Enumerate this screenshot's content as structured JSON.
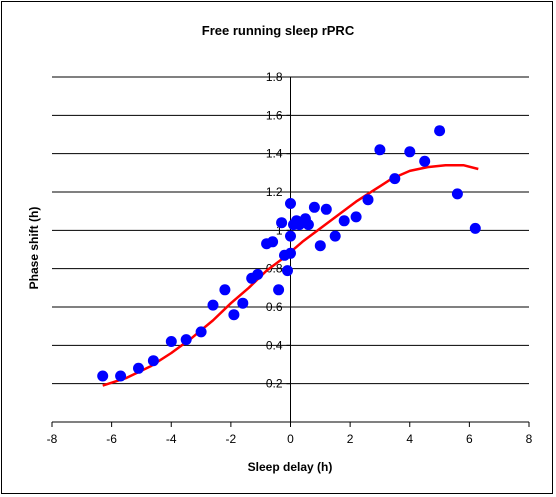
{
  "chart_data": {
    "type": "scatter",
    "title": "Free running sleep rPRC",
    "xlabel": "Sleep delay (h)",
    "ylabel": "Phase shift (h)",
    "xlim": [
      -8,
      8
    ],
    "ylim": [
      0,
      1.8
    ],
    "x_ticks": [
      "-8",
      "-6",
      "-4",
      "-2",
      "0",
      "2",
      "4",
      "6",
      "8"
    ],
    "y_ticks": [
      "0.2",
      "0.4",
      "0.6",
      "0.8",
      "1",
      "1.2",
      "1.4",
      "1.6",
      "1.8"
    ],
    "grid": "horizontal",
    "colors": {
      "points": "#0000ff",
      "fit": "#ff0000",
      "grid": "#000000"
    },
    "series": [
      {
        "kind": "points",
        "x": [
          -6.3,
          -5.7,
          -5.1,
          -4.6,
          -4.0,
          -3.5,
          -3.0,
          -2.6,
          -2.2,
          -1.9,
          -1.6,
          -1.3,
          -1.1,
          -0.8,
          -0.6,
          -0.4,
          -0.3,
          -0.2,
          -0.1,
          0.0,
          0.0,
          0.0,
          0.1,
          0.2,
          0.3,
          0.5,
          0.6,
          0.8,
          1.0,
          1.2,
          1.5,
          1.8,
          2.2,
          2.6,
          3.0,
          3.5,
          4.0,
          4.5,
          5.0,
          5.6,
          6.2
        ],
        "y": [
          0.24,
          0.24,
          0.28,
          0.32,
          0.42,
          0.43,
          0.47,
          0.61,
          0.69,
          0.56,
          0.62,
          0.75,
          0.77,
          0.93,
          0.94,
          0.69,
          1.04,
          0.87,
          0.79,
          0.88,
          1.14,
          0.97,
          1.03,
          1.05,
          1.03,
          1.06,
          1.03,
          1.12,
          0.92,
          1.11,
          0.97,
          1.05,
          1.07,
          1.16,
          1.42,
          1.27,
          1.41,
          1.36,
          1.52,
          1.19,
          1.01
        ]
      },
      {
        "kind": "fit-curve",
        "x": [
          -6.3,
          -5.5,
          -4.7,
          -4.0,
          -3.3,
          -2.6,
          -2.0,
          -1.4,
          -0.8,
          -0.2,
          0.4,
          1.0,
          1.6,
          2.2,
          2.8,
          3.4,
          4.0,
          4.6,
          5.2,
          5.8,
          6.3
        ],
        "y": [
          0.19,
          0.23,
          0.29,
          0.36,
          0.44,
          0.53,
          0.62,
          0.7,
          0.79,
          0.86,
          0.94,
          1.01,
          1.08,
          1.15,
          1.21,
          1.27,
          1.31,
          1.33,
          1.34,
          1.34,
          1.32
        ]
      }
    ]
  }
}
